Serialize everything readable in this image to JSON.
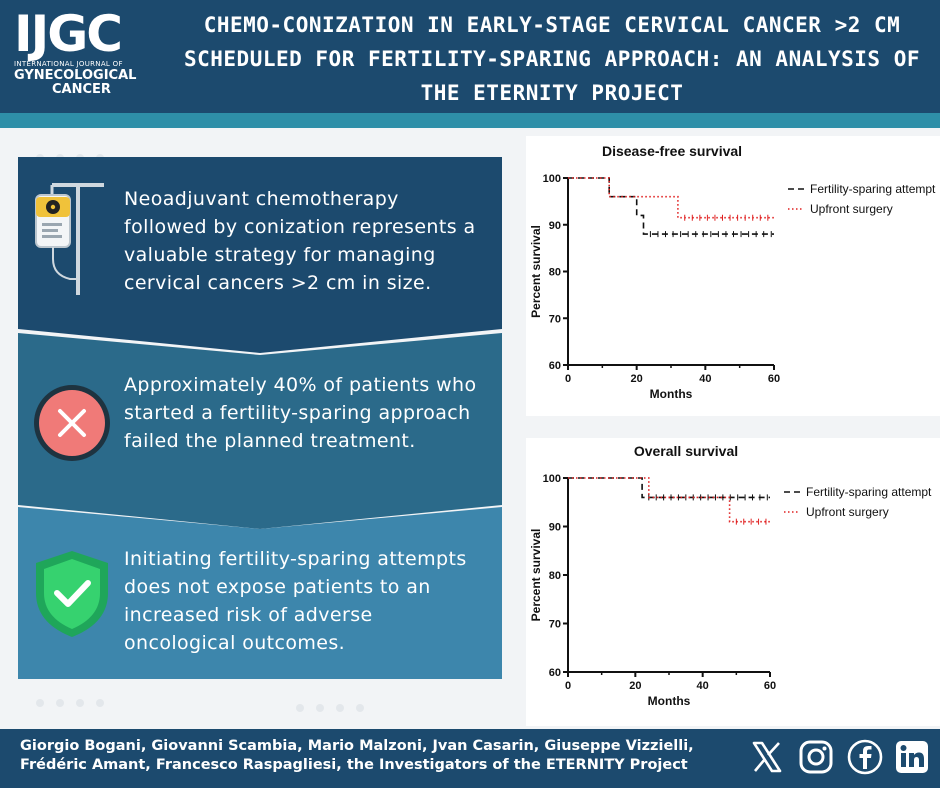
{
  "logo": {
    "big": "IJGC",
    "line1": "INTERNATIONAL JOURNAL OF",
    "line2": "GYNECOLOGICAL",
    "line3": "CANCER"
  },
  "title": {
    "line1": "CHEMO-CONIZATION IN EARLY-STAGE CERVICAL CANCER >2 CM",
    "line2": "SCHEDULED FOR FERTILITY-SPARING APPROACH: AN ANALYSIS OF",
    "line3": "THE ETERNITY PROJECT"
  },
  "panels": [
    {
      "text": "Neoadjuvant chemotherapy followed by conization represents a valuable strategy for managing cervical cancers >2 cm in size.",
      "color": "#1c4a6e",
      "icon": "iv-bag-radiation-icon"
    },
    {
      "text": "Approximately 40% of patients who started a fertility-sparing approach failed the planned treatment.",
      "color": "#2b6a8a",
      "icon": "red-x-circle-icon"
    },
    {
      "text": "Initiating fertility-sparing attempts does not expose patients to an increased risk of adverse oncological outcomes.",
      "color": "#3d86ac",
      "icon": "green-check-shield-icon"
    }
  ],
  "chart_data": [
    {
      "type": "line",
      "title": "Disease-free survival",
      "xlabel": "Months",
      "ylabel": "Percent survival",
      "xlim": [
        0,
        60
      ],
      "ylim": [
        60,
        100
      ],
      "xticks": [
        "0",
        "20",
        "40",
        "60"
      ],
      "yticks": [
        "60",
        "70",
        "80",
        "90",
        "100"
      ],
      "legend_position": "top-right",
      "series": [
        {
          "name": "Fertility-sparing attempt",
          "style": "dashed",
          "color": "#111111",
          "points": [
            [
              0,
              100
            ],
            [
              12,
              100
            ],
            [
              12,
              96
            ],
            [
              20,
              96
            ],
            [
              20,
              92
            ],
            [
              22,
              92
            ],
            [
              22,
              88
            ],
            [
              60,
              88
            ]
          ]
        },
        {
          "name": "Upfront surgery",
          "style": "dotted",
          "color": "#e02020",
          "points": [
            [
              0,
              100
            ],
            [
              12,
              100
            ],
            [
              12,
              96
            ],
            [
              32,
              96
            ],
            [
              32,
              91.5
            ],
            [
              60,
              91.5
            ]
          ]
        }
      ]
    },
    {
      "type": "line",
      "title": "Overall survival",
      "xlabel": "Months",
      "ylabel": "Percent survival",
      "xlim": [
        0,
        60
      ],
      "ylim": [
        60,
        100
      ],
      "xticks": [
        "0",
        "20",
        "40",
        "60"
      ],
      "yticks": [
        "60",
        "70",
        "80",
        "90",
        "100"
      ],
      "legend_position": "top-right",
      "series": [
        {
          "name": "Fertility-sparing attempt",
          "style": "dashed",
          "color": "#111111",
          "points": [
            [
              0,
              100
            ],
            [
              22,
              100
            ],
            [
              22,
              96
            ],
            [
              60,
              96
            ]
          ]
        },
        {
          "name": "Upfront surgery",
          "style": "dotted",
          "color": "#e02020",
          "points": [
            [
              0,
              100
            ],
            [
              24,
              100
            ],
            [
              24,
              96
            ],
            [
              48,
              96
            ],
            [
              48,
              91
            ],
            [
              60,
              91
            ]
          ]
        }
      ]
    }
  ],
  "footer": {
    "authors_line1": "Giorgio Bogani, Giovanni Scambia, Mario Malzoni, Jvan Casarin, Giuseppe Vizzielli,",
    "authors_line2": "Frédéric Amant, Francesco Raspagliesi, the Investigators of the ETERNITY Project",
    "social": [
      "x-icon",
      "instagram-icon",
      "facebook-icon",
      "linkedin-icon"
    ]
  }
}
